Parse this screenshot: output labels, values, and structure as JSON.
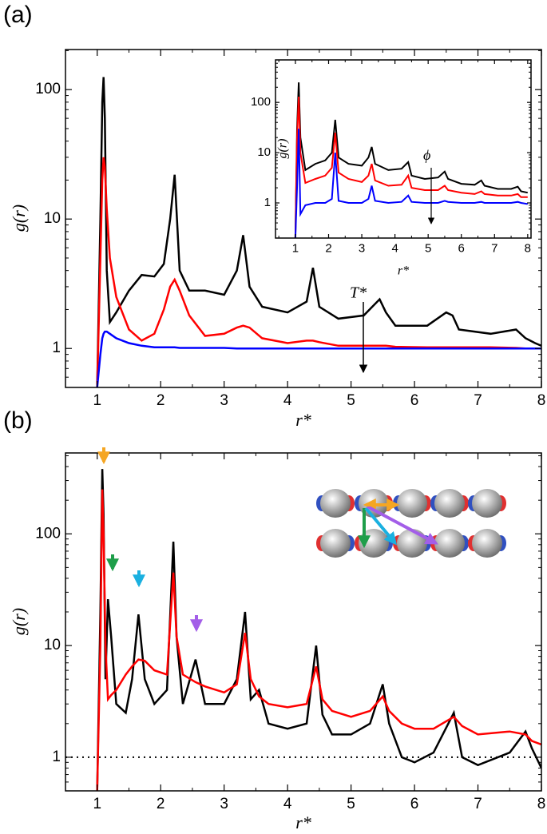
{
  "chart_data": [
    {
      "type": "line",
      "panel_label": "(a)",
      "annotation": "T*",
      "xlabel": "r*",
      "ylabel": "g(r)",
      "yscale": "log",
      "xlim": [
        0.5,
        8
      ],
      "ylim": [
        0.5,
        204
      ],
      "xticks": [
        1,
        2,
        3,
        4,
        5,
        6,
        7,
        8
      ],
      "yticks": [
        1,
        10,
        100
      ],
      "x": [
        1.0,
        1.05,
        1.08,
        1.1,
        1.12,
        1.15,
        1.2,
        1.3,
        1.5,
        1.7,
        1.9,
        2.05,
        2.15,
        2.22,
        2.3,
        2.45,
        2.7,
        3.0,
        3.2,
        3.3,
        3.4,
        3.6,
        4.0,
        4.3,
        4.4,
        4.5,
        4.8,
        5.2,
        5.45,
        5.55,
        5.7,
        6.2,
        6.5,
        6.6,
        6.7,
        7.2,
        7.6,
        7.75,
        7.9,
        8.0
      ],
      "series": [
        {
          "color": "#000000",
          "values": [
            0.5,
            10,
            80,
            125,
            60,
            4,
            1.6,
            1.9,
            2.8,
            3.7,
            3.6,
            4.5,
            10,
            22,
            4,
            2.8,
            2.8,
            2.6,
            4,
            7.5,
            3,
            2.1,
            1.9,
            2.3,
            4.2,
            2.1,
            1.7,
            1.8,
            2.4,
            1.9,
            1.5,
            1.5,
            1.9,
            1.8,
            1.4,
            1.3,
            1.4,
            1.2,
            1.1,
            1.05
          ]
        },
        {
          "color": "#ff0000",
          "values": [
            0.5,
            5,
            20,
            30,
            25,
            12,
            5,
            2.5,
            1.4,
            1.15,
            1.3,
            2,
            3,
            3.4,
            2.8,
            1.8,
            1.25,
            1.3,
            1.45,
            1.5,
            1.45,
            1.2,
            1.1,
            1.15,
            1.15,
            1.12,
            1.05,
            1.05,
            1.05,
            1.05,
            1.03,
            1.02,
            1.02,
            1.02,
            1.02,
            1.02,
            1.01,
            1.0,
            1.0,
            1.0
          ]
        },
        {
          "color": "#0000ff",
          "values": [
            0.5,
            0.9,
            1.2,
            1.3,
            1.35,
            1.35,
            1.3,
            1.2,
            1.1,
            1.05,
            1.02,
            1.02,
            1.02,
            1.02,
            1.01,
            1.01,
            1.01,
            1.01,
            1.0,
            1.0,
            1.0,
            1.0,
            1.0,
            1.0,
            1.0,
            1.0,
            1.0,
            1.0,
            1.0,
            1.0,
            1.0,
            1.0,
            1.0,
            1.0,
            1.0,
            1.0,
            1.0,
            1.0,
            1.0,
            1.0
          ]
        }
      ]
    },
    {
      "type": "line",
      "annotation": "ϕ",
      "xlabel": "r*",
      "ylabel": "g(r)",
      "yscale": "log",
      "xlim": [
        0.4,
        8.1
      ],
      "ylim": [
        0.2,
        700
      ],
      "xticks": [
        1,
        2,
        3,
        4,
        5,
        6,
        7,
        8
      ],
      "yticks": [
        1,
        10,
        100
      ],
      "x": [
        1.0,
        1.05,
        1.1,
        1.15,
        1.3,
        1.6,
        1.9,
        2.1,
        2.2,
        2.3,
        2.6,
        3.0,
        3.2,
        3.3,
        3.4,
        3.8,
        4.2,
        4.4,
        4.5,
        4.9,
        5.3,
        5.5,
        5.6,
        6.0,
        6.4,
        6.6,
        6.7,
        7.1,
        7.5,
        7.7,
        7.8,
        8.0
      ],
      "series": [
        {
          "color": "#000000",
          "values": [
            0.2,
            30,
            250,
            20,
            4.5,
            6,
            7,
            10,
            45,
            8,
            6,
            5.5,
            8,
            13,
            6,
            4.5,
            4.8,
            6.5,
            3.5,
            3,
            3.2,
            4.2,
            3,
            2.4,
            2.3,
            2.8,
            2.2,
            1.9,
            1.9,
            2.1,
            1.7,
            1.6
          ]
        },
        {
          "color": "#ff0000",
          "values": [
            0.2,
            20,
            130,
            10,
            2.5,
            3,
            3.5,
            5,
            25,
            4,
            3,
            2.6,
            3.5,
            6,
            2.8,
            2.2,
            2.3,
            3.5,
            2,
            1.8,
            1.8,
            2.2,
            1.8,
            1.6,
            1.5,
            1.7,
            1.5,
            1.4,
            1.4,
            1.5,
            1.3,
            1.3
          ]
        },
        {
          "color": "#0000ff",
          "values": [
            0.2,
            2,
            30,
            0.6,
            0.9,
            1.0,
            1.0,
            1.2,
            10,
            1.1,
            1.0,
            1.0,
            1.2,
            2.2,
            1.1,
            1.0,
            1.05,
            1.4,
            1.05,
            1.0,
            1.0,
            1.1,
            1.05,
            1.0,
            1.0,
            1.05,
            1.0,
            1.0,
            1.0,
            1.05,
            1.0,
            0.95
          ]
        }
      ]
    },
    {
      "type": "line",
      "panel_label": "(b)",
      "xlabel": "r*",
      "ylabel": "g(r)",
      "yscale": "log",
      "reference_line": 1,
      "xlim": [
        0.5,
        8
      ],
      "ylim": [
        0.5,
        530
      ],
      "xticks": [
        1,
        2,
        3,
        4,
        5,
        6,
        7,
        8
      ],
      "yticks": [
        1,
        10,
        100
      ],
      "x": [
        1.0,
        1.05,
        1.08,
        1.1,
        1.13,
        1.17,
        1.22,
        1.3,
        1.45,
        1.55,
        1.65,
        1.75,
        1.9,
        2.1,
        2.2,
        2.25,
        2.35,
        2.55,
        2.7,
        3.0,
        3.2,
        3.33,
        3.42,
        3.55,
        3.7,
        4.0,
        4.3,
        4.45,
        4.55,
        4.7,
        5.0,
        5.3,
        5.5,
        5.6,
        5.8,
        6.0,
        6.3,
        6.62,
        6.75,
        7.0,
        7.5,
        7.75,
        7.85,
        8.0
      ],
      "series": [
        {
          "color": "#000000",
          "values": [
            0.5,
            20,
            380,
            150,
            5,
            26,
            12,
            3,
            2.5,
            5,
            19,
            5,
            3,
            4,
            85,
            12,
            3,
            7.5,
            3,
            3,
            5,
            20,
            3.3,
            4,
            2,
            1.8,
            2,
            10,
            2.4,
            1.6,
            1.6,
            2,
            4.5,
            2,
            1,
            0.9,
            1.1,
            2.5,
            1,
            0.85,
            1.1,
            1.7,
            1.2,
            0.8
          ]
        },
        {
          "color": "#ff0000",
          "values": [
            0.5,
            10,
            250,
            100,
            10,
            3.3,
            3.6,
            4,
            5.5,
            6.5,
            7.5,
            7.3,
            6,
            5.5,
            45,
            12,
            5.5,
            4.7,
            4.3,
            3.8,
            4.5,
            13,
            5,
            3.5,
            3,
            2.8,
            3,
            6.5,
            3.3,
            2.6,
            2.3,
            2.6,
            3.5,
            2.6,
            2,
            1.8,
            1.8,
            2.3,
            1.9,
            1.6,
            1.7,
            1.6,
            1.4,
            1.3
          ]
        }
      ]
    }
  ]
}
